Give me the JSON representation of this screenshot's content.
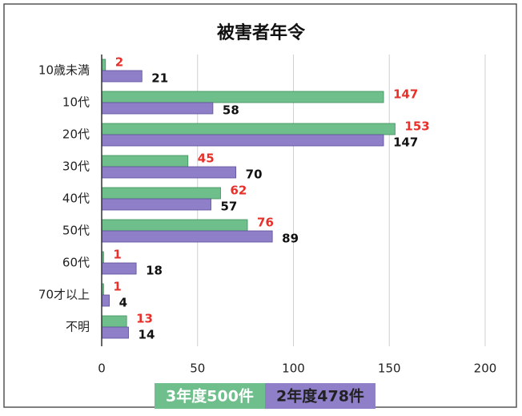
{
  "chart_data": {
    "type": "bar",
    "orientation": "horizontal",
    "title": "被害者年令",
    "categories": [
      "10歳未満",
      "10代",
      "20代",
      "30代",
      "40代",
      "50代",
      "60代",
      "70才以上",
      "不明"
    ],
    "series": [
      {
        "name": "3年度500件",
        "color": "#6fbf8c",
        "label_color": "#e8302a",
        "values": [
          2,
          147,
          153,
          45,
          62,
          76,
          1,
          1,
          13
        ]
      },
      {
        "name": "2年度478件",
        "color": "#8f7fc8",
        "label_color": "#111111",
        "values": [
          21,
          58,
          147,
          70,
          57,
          89,
          18,
          4,
          14
        ]
      }
    ],
    "xlim": [
      0,
      200
    ],
    "xticks": [
      0,
      50,
      100,
      150,
      200
    ],
    "grid": true
  }
}
